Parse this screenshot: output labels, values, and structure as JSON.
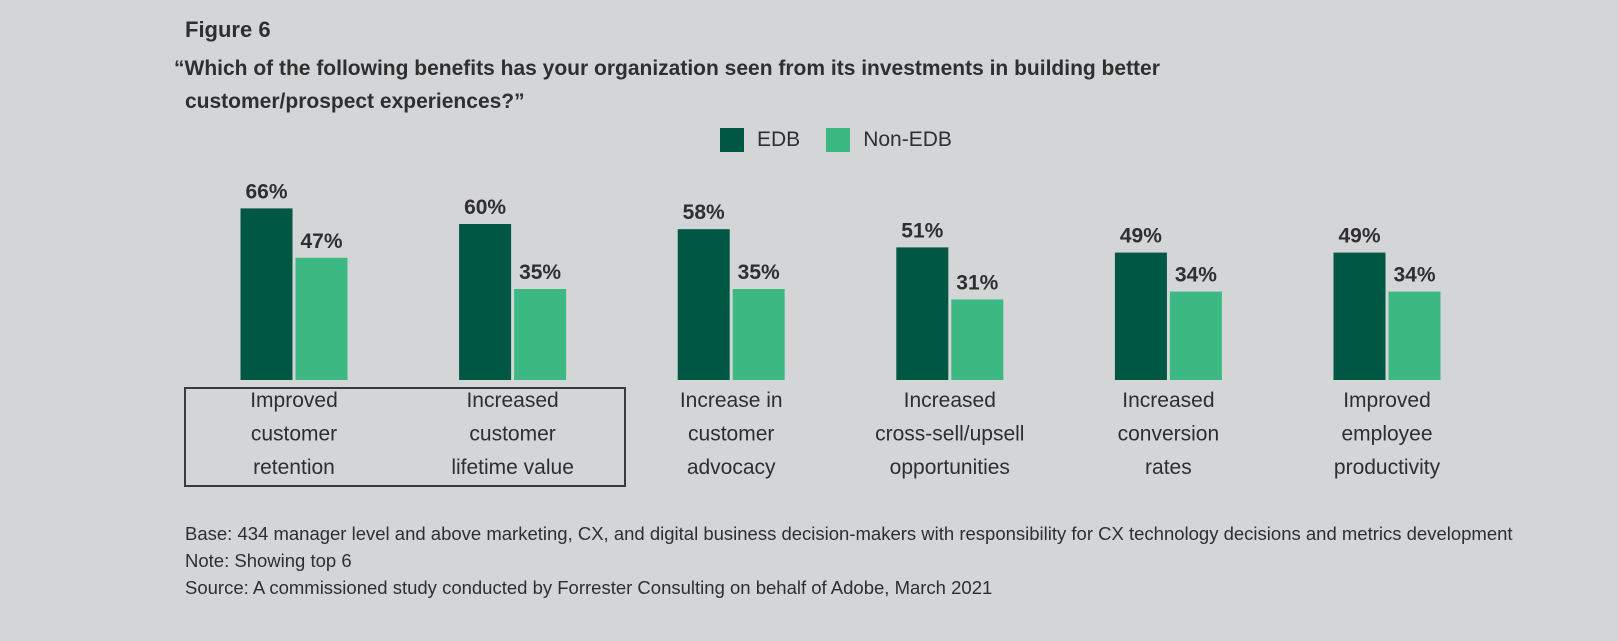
{
  "figure_label": "Figure 6",
  "question": {
    "line1": "“Which of the following benefits has your organization seen from its investments in building better",
    "line2": "customer/prospect experiences?”"
  },
  "footnotes": {
    "base": "Base: 434 manager level and above marketing, CX, and digital business decision-makers with responsibility for CX technology decisions and metrics development",
    "note": "Note: Showing top 6",
    "source": "Source: A commissioned study conducted by Forrester Consulting on behalf of Adobe, March 2021"
  },
  "colors": {
    "edb": "#005744",
    "non_edb": "#3cb982",
    "background": "#d4d5d7",
    "text": "#2e2e2e"
  },
  "chart_data": {
    "type": "bar",
    "categories": [
      "Improved customer retention",
      "Increased customer lifetime value",
      "Increase in customer advocacy",
      "Increased cross-sell/upsell opportunities",
      "Increased conversion rates",
      "Improved employee productivity"
    ],
    "category_lines": [
      [
        "Improved",
        "customer",
        "retention"
      ],
      [
        "Increased",
        "customer",
        "lifetime value"
      ],
      [
        "Increase in",
        "customer",
        "advocacy"
      ],
      [
        "Increased",
        "cross-sell/upsell",
        "opportunities"
      ],
      [
        "Increased",
        "conversion",
        "rates"
      ],
      [
        "Improved",
        "employee",
        "productivity"
      ]
    ],
    "series": [
      {
        "name": "EDB",
        "values": [
          66,
          60,
          58,
          51,
          49,
          49
        ],
        "labels": [
          "66%",
          "60%",
          "58%",
          "51%",
          "49%",
          "49%"
        ]
      },
      {
        "name": "Non-EDB",
        "values": [
          47,
          35,
          35,
          31,
          34,
          34
        ],
        "labels": [
          "47%",
          "35%",
          "35%",
          "31%",
          "34%",
          "34%"
        ]
      }
    ],
    "ylim": [
      0,
      100
    ],
    "grid": false,
    "legend_position": "top-center",
    "highlighted_categories": [
      "Improved customer retention",
      "Increased customer lifetime value"
    ]
  }
}
